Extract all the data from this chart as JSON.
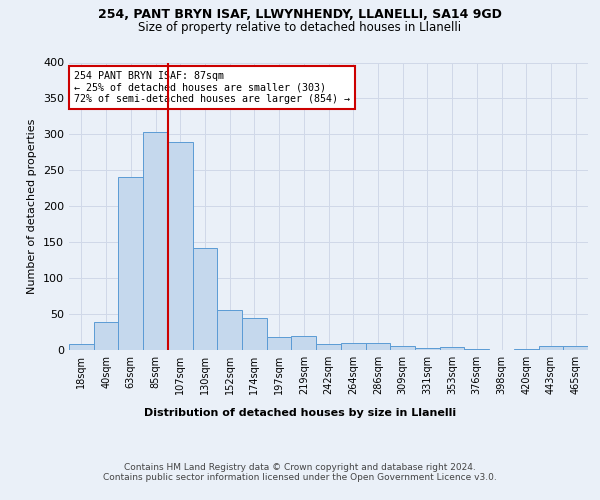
{
  "title1": "254, PANT BRYN ISAF, LLWYNHENDY, LLANELLI, SA14 9GD",
  "title2": "Size of property relative to detached houses in Llanelli",
  "xlabel": "Distribution of detached houses by size in Llanelli",
  "ylabel": "Number of detached properties",
  "footnote": "Contains HM Land Registry data © Crown copyright and database right 2024.\nContains public sector information licensed under the Open Government Licence v3.0.",
  "bar_labels": [
    "18sqm",
    "40sqm",
    "63sqm",
    "85sqm",
    "107sqm",
    "130sqm",
    "152sqm",
    "174sqm",
    "197sqm",
    "219sqm",
    "242sqm",
    "264sqm",
    "286sqm",
    "309sqm",
    "331sqm",
    "353sqm",
    "376sqm",
    "398sqm",
    "420sqm",
    "443sqm",
    "465sqm"
  ],
  "bar_values": [
    8,
    39,
    241,
    303,
    289,
    142,
    55,
    44,
    18,
    20,
    8,
    10,
    10,
    5,
    3,
    4,
    2,
    0,
    2,
    5,
    5
  ],
  "bar_color": "#c5d8ed",
  "bar_edge_color": "#5b9bd5",
  "vline_color": "#cc0000",
  "annotation_box_color": "#ffffff",
  "annotation_box_edge": "#cc0000",
  "property_line_label": "254 PANT BRYN ISAF: 87sqm",
  "annotation_line1": "← 25% of detached houses are smaller (303)",
  "annotation_line2": "72% of semi-detached houses are larger (854) →",
  "ylim": [
    0,
    400
  ],
  "yticks": [
    0,
    50,
    100,
    150,
    200,
    250,
    300,
    350,
    400
  ],
  "grid_color": "#d0d8e8",
  "bg_color": "#eaf0f8",
  "plot_bg_color": "#eaf0f8",
  "vline_bar_index": 3.5
}
